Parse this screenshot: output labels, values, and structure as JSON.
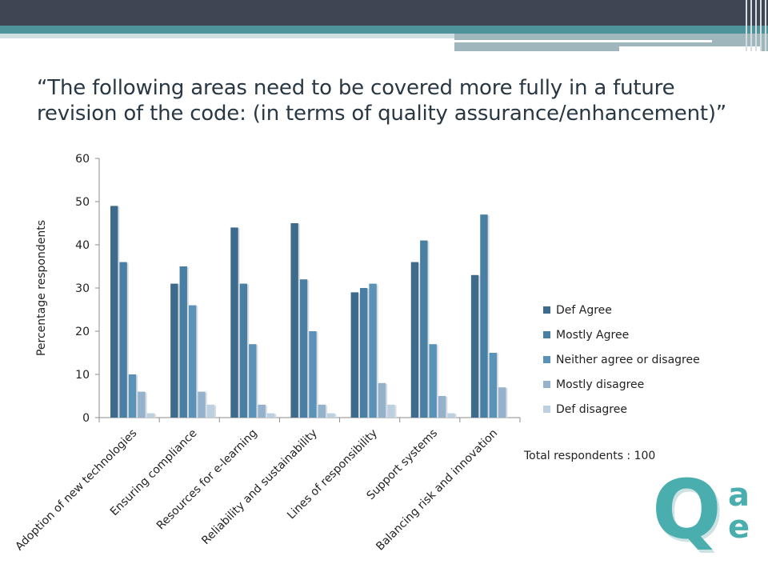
{
  "slide": {
    "title_line1": "“The following areas need to be covered more fully in a future",
    "title_line2": "revision of the code: (in terms of quality assurance/enhancement)”",
    "footnote": "Total respondents : 100",
    "logo_letters": {
      "big": "Q",
      "top": "a",
      "bottom": "e"
    },
    "logo_color": "#4aaeae"
  },
  "chart_data": {
    "type": "bar",
    "title": "",
    "xlabel": "",
    "ylabel": "Percentage respondents",
    "ylim": [
      0,
      60
    ],
    "yticks": [
      0,
      10,
      20,
      30,
      40,
      50,
      60
    ],
    "grid": false,
    "legend_position": "right",
    "categories": [
      "Adoption of new technologies",
      "Ensuring compliance",
      "Resources for e-learning",
      "Reliability and sustainability",
      "Lines of responsibility",
      "Support systems",
      "Balancing risk and innovation"
    ],
    "series": [
      {
        "name": "Def Agree",
        "color": "#3e6a8c",
        "values": [
          49,
          31,
          44,
          45,
          29,
          36,
          33
        ]
      },
      {
        "name": "Mostly Agree",
        "color": "#4a7fa4",
        "values": [
          36,
          35,
          31,
          32,
          30,
          41,
          47
        ]
      },
      {
        "name": "Neither agree or disagree",
        "color": "#5b93b8",
        "values": [
          10,
          26,
          17,
          20,
          31,
          17,
          15
        ]
      },
      {
        "name": "Mostly disagree",
        "color": "#94b2cc",
        "values": [
          6,
          6,
          3,
          3,
          8,
          5,
          7
        ]
      },
      {
        "name": "Def disagree",
        "color": "#bcd0e0",
        "values": [
          1,
          3,
          1,
          1,
          3,
          1,
          0
        ]
      }
    ]
  }
}
